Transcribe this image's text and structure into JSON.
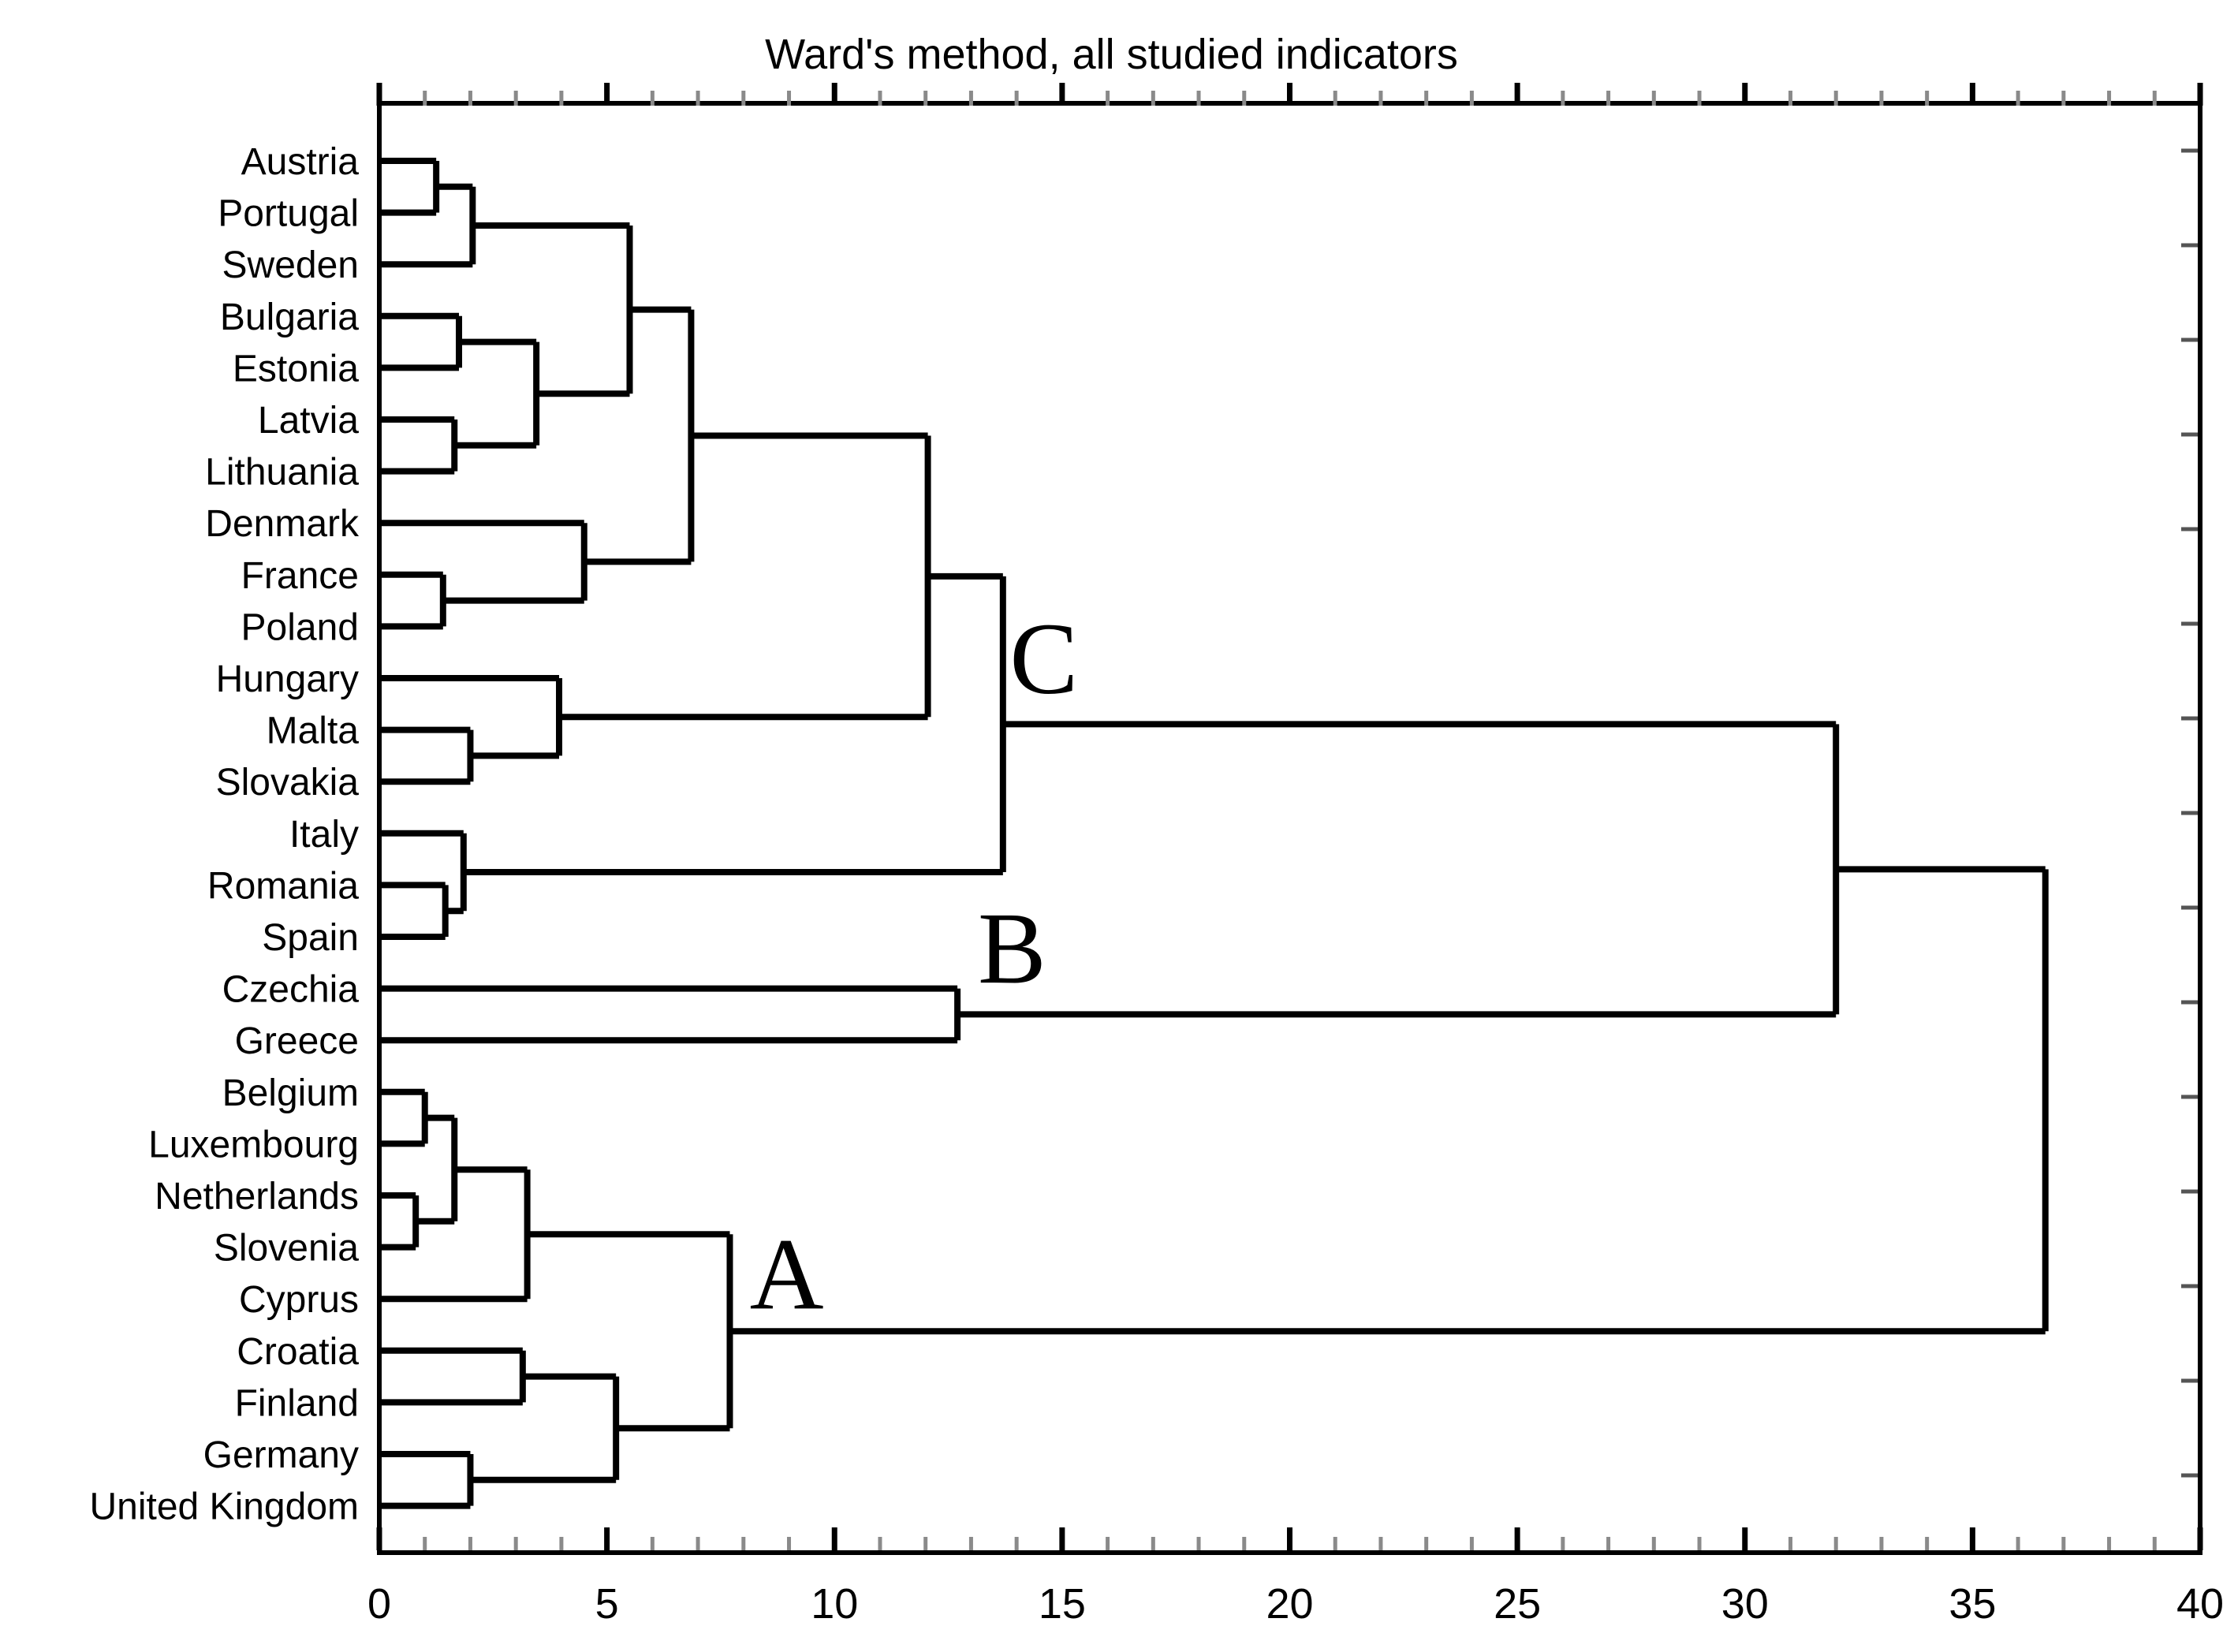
{
  "title": "Ward's method, all studied indicators",
  "colors": {
    "line": "#000000",
    "background": "#ffffff",
    "minor_tick": "#8a8a8a",
    "major_tick": "#000000",
    "frame": "#000000"
  },
  "chart_data": {
    "type": "dendrogram",
    "orientation": "horizontal",
    "title": "Ward's method, all studied indicators",
    "xlabel": "",
    "ylabel": "",
    "grid": false,
    "legend": false,
    "x_axis": {
      "min": 0,
      "max": 40,
      "major_ticks": [
        0,
        5,
        10,
        15,
        20,
        25,
        30,
        35,
        40
      ],
      "minor_step": 1
    },
    "leaves": [
      "Austria",
      "Portugal",
      "Sweden",
      "Bulgaria",
      "Estonia",
      "Latvia",
      "Lithuania",
      "Denmark",
      "France",
      "Poland",
      "Hungary",
      "Malta",
      "Slovakia",
      "Italy",
      "Romania",
      "Spain",
      "Czechia",
      "Greece",
      "Belgium",
      "Luxembourg",
      "Netherlands",
      "Slovenia",
      "Cyprus",
      "Croatia",
      "Finland",
      "Germany",
      "United Kingdom"
    ],
    "merges": [
      [
        "Austria",
        "Portugal",
        1.25
      ],
      [
        "#0",
        "Sweden",
        2.05
      ],
      [
        "Bulgaria",
        "Estonia",
        1.75
      ],
      [
        "Latvia",
        "Lithuania",
        1.65
      ],
      [
        "#2",
        "#3",
        3.45
      ],
      [
        "#1",
        "#4",
        5.5
      ],
      [
        "France",
        "Poland",
        1.4
      ],
      [
        "Denmark",
        "#6",
        4.5
      ],
      [
        "#5",
        "#7",
        6.85
      ],
      [
        "Malta",
        "Slovakia",
        2.0
      ],
      [
        "Hungary",
        "#9",
        3.95
      ],
      [
        "#8",
        "#10",
        12.05
      ],
      [
        "Romania",
        "Spain",
        1.45
      ],
      [
        "Italy",
        "#12",
        1.85
      ],
      [
        "#11",
        "#13",
        13.7
      ],
      [
        "Czechia",
        "Greece",
        12.7
      ],
      [
        "#14",
        "#15",
        32.0
      ],
      [
        "Belgium",
        "Luxembourg",
        1.0
      ],
      [
        "Netherlands",
        "Slovenia",
        0.8
      ],
      [
        "#17",
        "#18",
        1.65
      ],
      [
        "#19",
        "Cyprus",
        3.25
      ],
      [
        "Germany",
        "United Kingdom",
        2.0
      ],
      [
        "Croatia",
        "Finland",
        3.15
      ],
      [
        "#22",
        "#21",
        5.2
      ],
      [
        "#20",
        "#23",
        7.7
      ],
      [
        "#16",
        "#24",
        36.6
      ]
    ],
    "cluster_labels": [
      {
        "text": "C",
        "x": 14.6,
        "row": 9.6
      },
      {
        "text": "B",
        "x": 13.9,
        "row": 15.2
      },
      {
        "text": "A",
        "x": 8.95,
        "row": 21.5
      }
    ]
  }
}
